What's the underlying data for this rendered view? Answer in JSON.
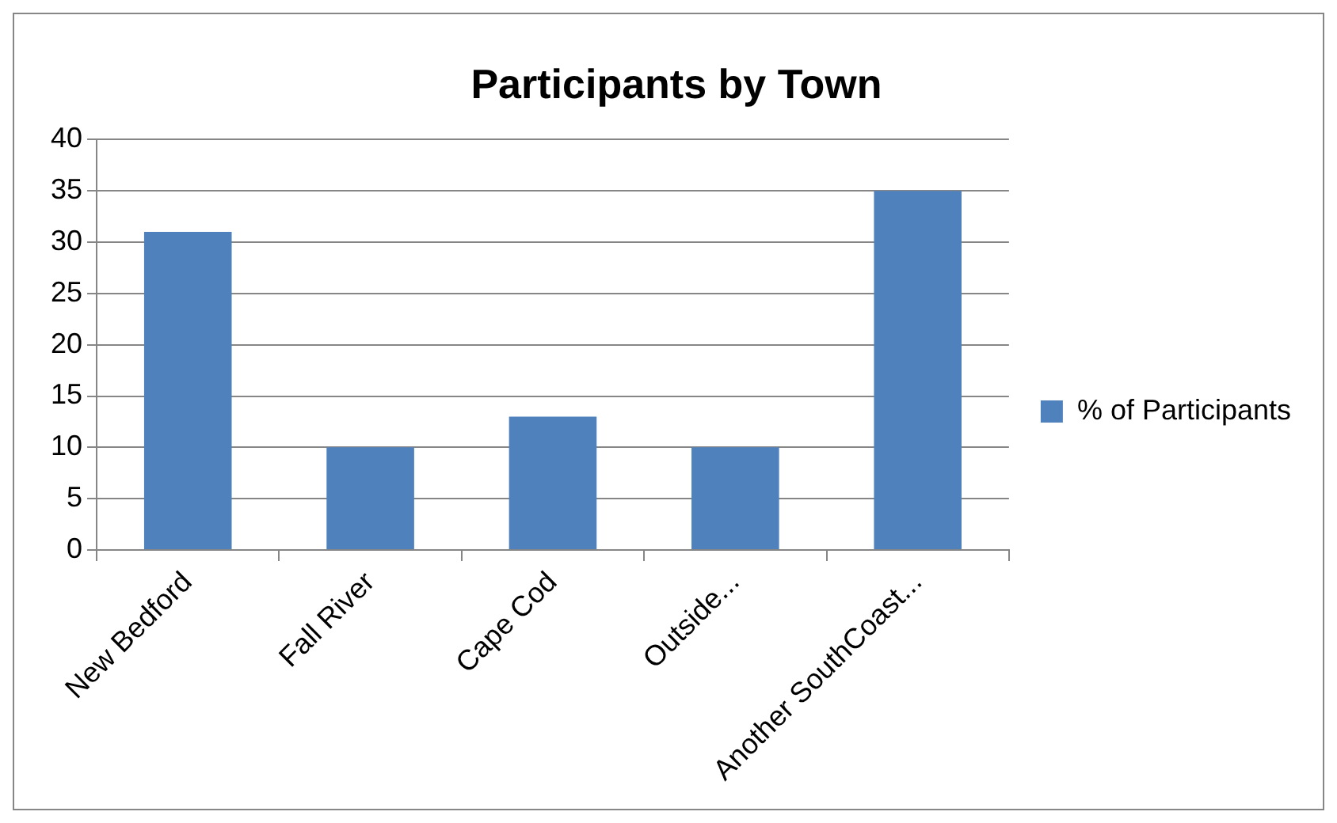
{
  "chart_data": {
    "type": "bar",
    "title": "Participants by Town",
    "categories": [
      "New Bedford",
      "Fall River",
      "Cape Cod",
      "Outside...",
      "Another SouthCoast..."
    ],
    "series": [
      {
        "name": "% of Participants",
        "color": "#4f81bd",
        "values": [
          31,
          10,
          13,
          10,
          35
        ]
      }
    ],
    "ylim": [
      0,
      40
    ],
    "yticks": [
      0,
      5,
      10,
      15,
      20,
      25,
      30,
      35,
      40
    ],
    "grid": "y",
    "legend": "right"
  }
}
